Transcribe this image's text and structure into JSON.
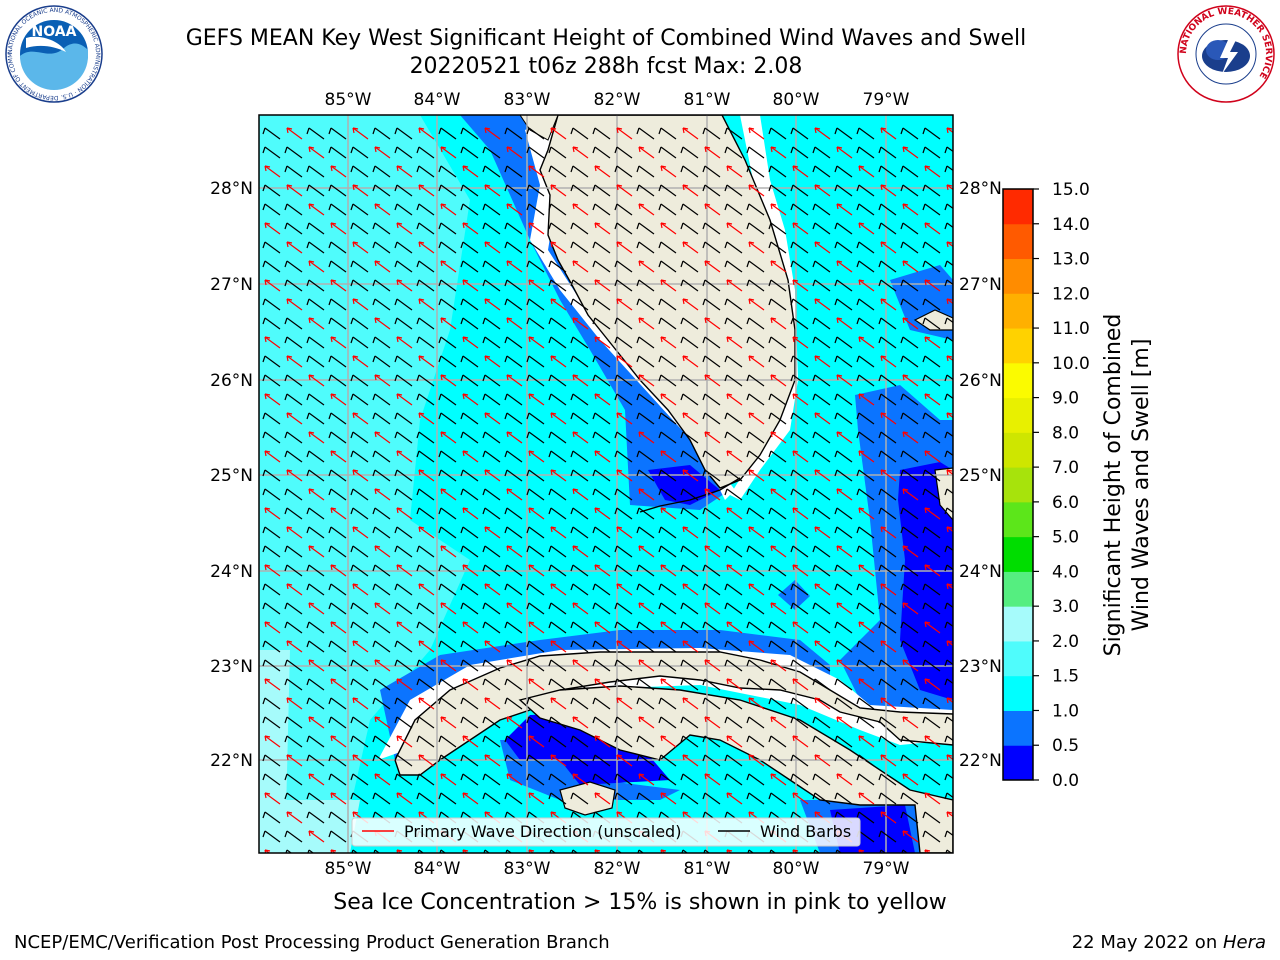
{
  "header": {
    "title_line1": "GEFS MEAN Key West Significant Height of Combined Wind Waves and Swell",
    "title_line2": "20220521 t06z 288h fcst   Max: 2.08"
  },
  "logos": {
    "noaa_text": "NOAA",
    "noaa_ring_text": "NATIONAL OCEANIC AND ATMOSPHERIC ADMINISTRATION · U.S. DEPARTMENT OF COMMERCE",
    "nws_ring_text": "NATIONAL WEATHER SERVICE"
  },
  "map": {
    "lon_ticks": [
      "85°W",
      "84°W",
      "83°W",
      "82°W",
      "81°W",
      "80°W",
      "79°W"
    ],
    "lat_ticks": [
      "28°N",
      "27°N",
      "26°N",
      "25°N",
      "24°N",
      "23°N",
      "22°N"
    ],
    "legend": {
      "wave_direction_label": "Primary Wave Direction (unscaled)",
      "wind_barbs_label": "Wind Barbs",
      "wave_color": "#ff0000",
      "barb_color": "#000000"
    },
    "land_color": "#eeecdc",
    "grid_color": "#b0b0b0"
  },
  "colorbar": {
    "label": "Significant Height of Combined\nWind Waves and Swell [m]",
    "ticks": [
      "0.0",
      "0.5",
      "1.0",
      "1.5",
      "2.0",
      "3.0",
      "4.0",
      "5.0",
      "6.0",
      "7.0",
      "8.0",
      "9.0",
      "10.0",
      "11.0",
      "12.0",
      "13.0",
      "14.0",
      "15.0"
    ],
    "colors": [
      "#0000ff",
      "#0b74ff",
      "#00ffff",
      "#4ffcfc",
      "#a6fbfb",
      "#55ee80",
      "#00dd00",
      "#5ce61a",
      "#a7e30c",
      "#cee600",
      "#e8f000",
      "#fbfb00",
      "#ffd200",
      "#ffb000",
      "#ff8c00",
      "#ff5a00",
      "#ff2a00"
    ]
  },
  "notes": {
    "ice_note": "Sea Ice Concentration > 15% is shown in pink to yellow"
  },
  "footer": {
    "left": "NCEP/EMC/Verification Post Processing Product Generation Branch",
    "right_prefix": "22 May 2022 on ",
    "right_host": "Hera"
  }
}
